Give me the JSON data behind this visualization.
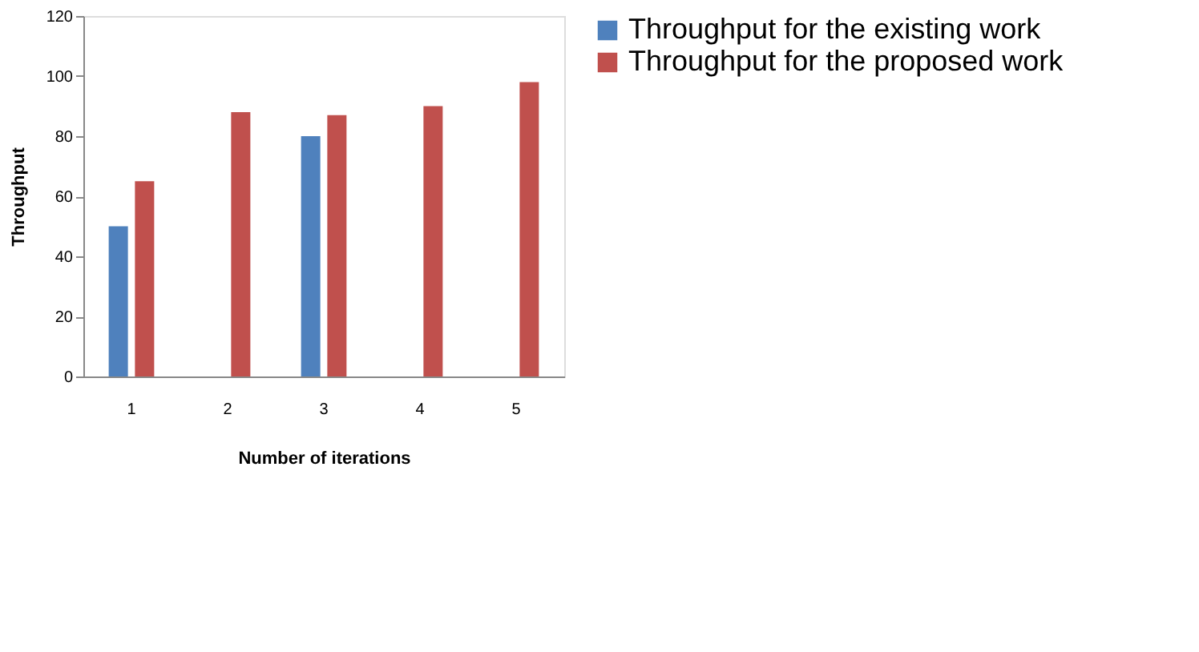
{
  "chart_data": {
    "type": "bar",
    "xlabel": "Number of iterations",
    "ylabel": "Throughput",
    "categories": [
      "1",
      "2",
      "3",
      "4",
      "5"
    ],
    "series": [
      {
        "name": "Throughput for the existing work",
        "color": "#4f81bd",
        "values": [
          50,
          null,
          80,
          null,
          null
        ]
      },
      {
        "name": "Throughput for the proposed work",
        "color": "#c0504d",
        "values": [
          65,
          88,
          87,
          90,
          98
        ]
      }
    ],
    "ylim": [
      0,
      120
    ],
    "yticks": [
      0,
      20,
      40,
      60,
      80,
      100,
      120
    ],
    "grid": false,
    "legend": "right"
  }
}
